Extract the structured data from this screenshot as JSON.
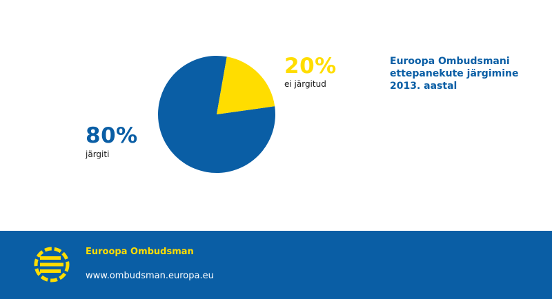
{
  "colors": {
    "blue": "#0a5ea5",
    "yellow": "#ffdd00",
    "footer_bg": "#0a5ea5",
    "white": "#ffffff"
  },
  "chart_data": {
    "type": "pie",
    "title": "Euroopa Ombudsmani ettepanekute järgimine 2013. aastal",
    "slices": [
      {
        "value": 80,
        "label": "järgiti",
        "percent_label": "80%",
        "color": "#0a5ea5"
      },
      {
        "value": 20,
        "label": "ei järgitud",
        "percent_label": "20%",
        "color": "#ffdd00"
      }
    ]
  },
  "title_lines": [
    "Euroopa Ombudsmani",
    "ettepanekute järgimine",
    "2013. aastal"
  ],
  "footer": {
    "org_name": "Euroopa Ombudsman",
    "url": "www.ombudsman.europa.eu",
    "logo_icon": "european-ombudsman-logo-icon"
  }
}
